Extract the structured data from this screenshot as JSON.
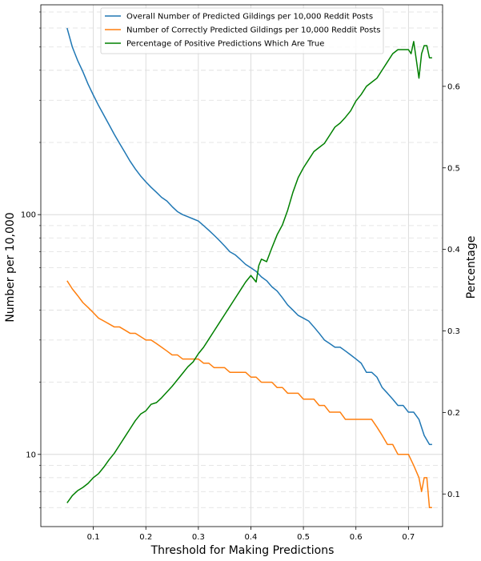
{
  "chart_data": {
    "type": "line",
    "title": "",
    "xlabel": "Threshold for Making Predictions",
    "ylabel": "Number per 10,000",
    "y2label": "Percentage",
    "y2label_color": "#008000",
    "xlim": [
      0.0,
      0.765
    ],
    "ylim": [
      5,
      750
    ],
    "yscale": "log",
    "y2lim": [
      0.06,
      0.7
    ],
    "grid": true,
    "legend_position": "top-center",
    "x_ticks": [
      {
        "value": 0.1,
        "label": "0.1"
      },
      {
        "value": 0.2,
        "label": "0.2"
      },
      {
        "value": 0.3,
        "label": "0.3"
      },
      {
        "value": 0.4,
        "label": "0.4"
      },
      {
        "value": 0.5,
        "label": "0.5"
      },
      {
        "value": 0.6,
        "label": "0.6"
      },
      {
        "value": 0.7,
        "label": "0.7"
      }
    ],
    "y_ticks": [
      {
        "value": 10,
        "label": "10"
      },
      {
        "value": 100,
        "label": "100"
      }
    ],
    "y2_ticks": [
      {
        "value": 0.1,
        "label": "0.1"
      },
      {
        "value": 0.2,
        "label": "0.2"
      },
      {
        "value": 0.3,
        "label": "0.3"
      },
      {
        "value": 0.4,
        "label": "0.4"
      },
      {
        "value": 0.5,
        "label": "0.5"
      },
      {
        "value": 0.6,
        "label": "0.6"
      }
    ],
    "series": [
      {
        "name": "Overall Number of Predicted Gildings per 10,000 Reddit Posts",
        "color": "#1f77b4",
        "axis": "left",
        "x": [
          0.05,
          0.06,
          0.07,
          0.08,
          0.09,
          0.1,
          0.11,
          0.12,
          0.13,
          0.14,
          0.15,
          0.16,
          0.17,
          0.18,
          0.19,
          0.2,
          0.21,
          0.22,
          0.23,
          0.24,
          0.25,
          0.26,
          0.27,
          0.28,
          0.29,
          0.3,
          0.31,
          0.32,
          0.33,
          0.34,
          0.35,
          0.36,
          0.37,
          0.38,
          0.39,
          0.4,
          0.41,
          0.42,
          0.43,
          0.44,
          0.45,
          0.46,
          0.47,
          0.48,
          0.49,
          0.5,
          0.51,
          0.52,
          0.53,
          0.54,
          0.55,
          0.56,
          0.57,
          0.58,
          0.59,
          0.6,
          0.61,
          0.62,
          0.63,
          0.64,
          0.65,
          0.66,
          0.67,
          0.68,
          0.69,
          0.7,
          0.71,
          0.72,
          0.73,
          0.74,
          0.745
        ],
        "values": [
          600,
          500,
          440,
          395,
          350,
          315,
          285,
          260,
          237,
          216,
          198,
          182,
          167,
          155,
          145,
          137,
          130,
          124,
          118,
          114,
          108,
          103,
          100,
          98,
          96,
          94,
          90,
          86,
          82,
          78,
          74,
          70,
          68,
          65,
          62,
          60,
          58,
          55,
          53,
          50,
          48,
          45,
          42,
          40,
          38,
          37,
          36,
          34,
          32,
          30,
          29,
          28,
          28,
          27,
          26,
          25,
          24,
          22,
          22,
          21,
          19,
          18,
          17,
          16,
          16,
          15,
          15,
          14,
          12,
          11,
          11
        ]
      },
      {
        "name": "Number of Correctly Predicted Gildings per 10,000 Reddit Posts",
        "color": "#ff7f0e",
        "axis": "left",
        "x": [
          0.05,
          0.06,
          0.07,
          0.08,
          0.09,
          0.1,
          0.11,
          0.12,
          0.13,
          0.14,
          0.15,
          0.16,
          0.17,
          0.18,
          0.19,
          0.2,
          0.21,
          0.22,
          0.23,
          0.24,
          0.25,
          0.26,
          0.27,
          0.28,
          0.29,
          0.3,
          0.31,
          0.32,
          0.33,
          0.34,
          0.35,
          0.36,
          0.37,
          0.38,
          0.39,
          0.4,
          0.41,
          0.42,
          0.43,
          0.44,
          0.45,
          0.46,
          0.47,
          0.48,
          0.49,
          0.5,
          0.51,
          0.52,
          0.53,
          0.54,
          0.55,
          0.56,
          0.57,
          0.58,
          0.59,
          0.6,
          0.61,
          0.62,
          0.63,
          0.64,
          0.65,
          0.66,
          0.67,
          0.68,
          0.69,
          0.7,
          0.71,
          0.72,
          0.725,
          0.73,
          0.735,
          0.74,
          0.745
        ],
        "values": [
          53,
          49,
          46,
          43,
          41,
          39,
          37,
          36,
          35,
          34,
          34,
          33,
          32,
          32,
          31,
          30,
          30,
          29,
          28,
          27,
          26,
          26,
          25,
          25,
          25,
          25,
          24,
          24,
          23,
          23,
          23,
          22,
          22,
          22,
          22,
          21,
          21,
          20,
          20,
          20,
          19,
          19,
          18,
          18,
          18,
          17,
          17,
          17,
          16,
          16,
          15,
          15,
          15,
          14,
          14,
          14,
          14,
          14,
          14,
          13,
          12,
          11,
          11,
          10,
          10,
          10,
          9,
          8,
          7,
          8,
          8,
          6,
          6
        ]
      },
      {
        "name": "Percentage of Positive Predictions Which Are True",
        "color": "#008000",
        "axis": "right",
        "x": [
          0.05,
          0.06,
          0.07,
          0.08,
          0.09,
          0.1,
          0.11,
          0.12,
          0.13,
          0.14,
          0.15,
          0.16,
          0.17,
          0.18,
          0.19,
          0.2,
          0.21,
          0.22,
          0.23,
          0.24,
          0.25,
          0.26,
          0.27,
          0.28,
          0.29,
          0.3,
          0.31,
          0.32,
          0.33,
          0.34,
          0.35,
          0.36,
          0.37,
          0.38,
          0.39,
          0.4,
          0.41,
          0.415,
          0.42,
          0.43,
          0.44,
          0.45,
          0.46,
          0.47,
          0.48,
          0.49,
          0.5,
          0.51,
          0.52,
          0.53,
          0.54,
          0.55,
          0.56,
          0.57,
          0.58,
          0.59,
          0.6,
          0.61,
          0.62,
          0.63,
          0.64,
          0.65,
          0.66,
          0.67,
          0.68,
          0.69,
          0.7,
          0.705,
          0.71,
          0.72,
          0.725,
          0.73,
          0.735,
          0.74,
          0.745
        ],
        "values": [
          0.089,
          0.098,
          0.104,
          0.108,
          0.113,
          0.12,
          0.125,
          0.133,
          0.142,
          0.15,
          0.16,
          0.17,
          0.18,
          0.19,
          0.198,
          0.202,
          0.21,
          0.212,
          0.218,
          0.225,
          0.232,
          0.24,
          0.248,
          0.256,
          0.262,
          0.272,
          0.28,
          0.29,
          0.3,
          0.31,
          0.32,
          0.33,
          0.34,
          0.35,
          0.36,
          0.368,
          0.36,
          0.38,
          0.388,
          0.385,
          0.402,
          0.418,
          0.43,
          0.448,
          0.47,
          0.488,
          0.5,
          0.51,
          0.52,
          0.525,
          0.53,
          0.54,
          0.55,
          0.555,
          0.562,
          0.57,
          0.582,
          0.59,
          0.6,
          0.605,
          0.61,
          0.62,
          0.63,
          0.64,
          0.645,
          0.645,
          0.645,
          0.64,
          0.655,
          0.61,
          0.64,
          0.65,
          0.65,
          0.635,
          0.635
        ]
      }
    ]
  }
}
